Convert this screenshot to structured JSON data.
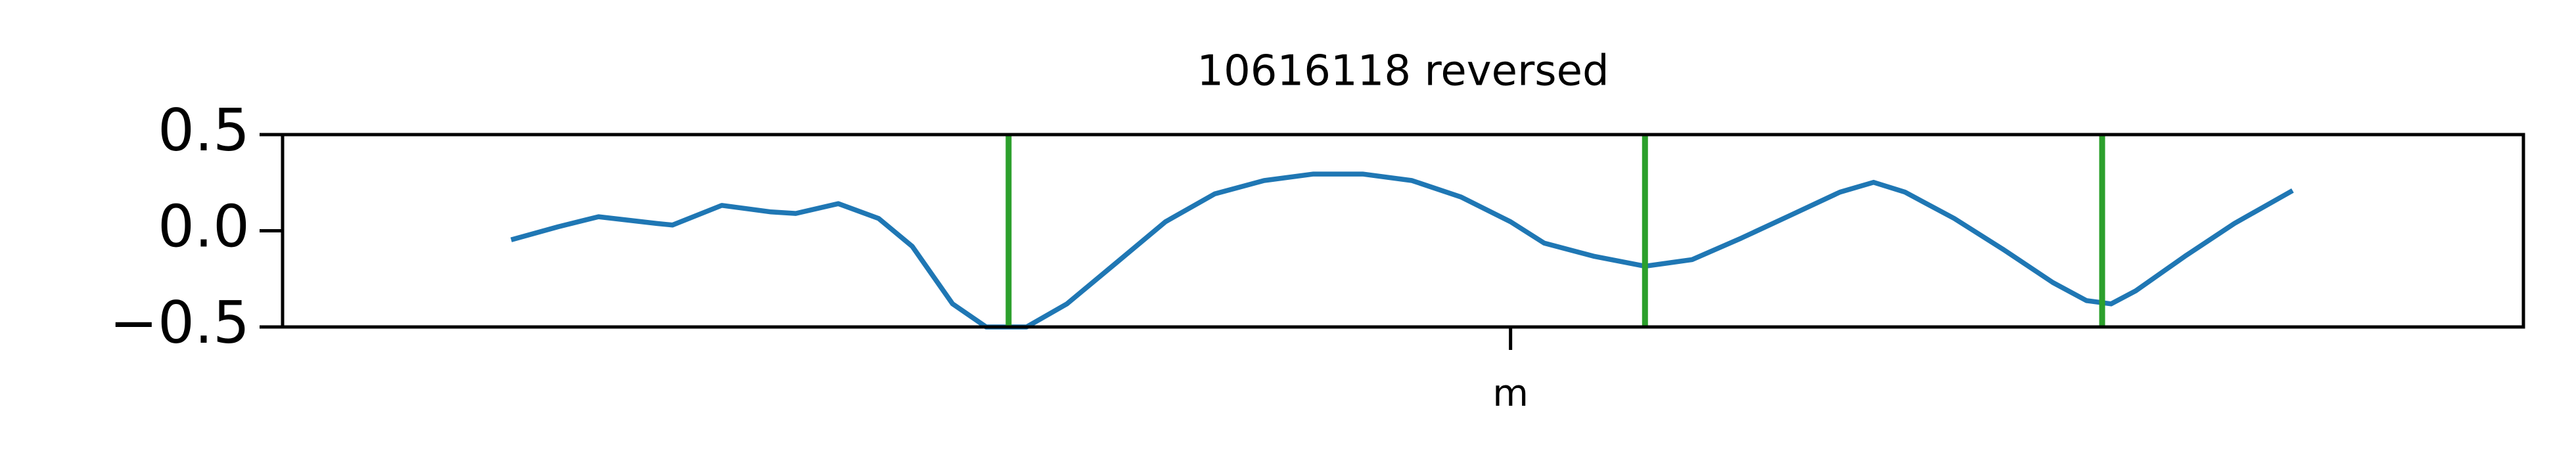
{
  "chart_data": {
    "type": "line",
    "title": "10616118 reversed",
    "x": [
      10.2,
      12.3,
      14.1,
      16.7,
      17.4,
      19.6,
      21.8,
      22.9,
      24.8,
      26.6,
      28.1,
      29.9,
      31.4,
      33.2,
      35.0,
      37.2,
      39.4,
      41.6,
      43.8,
      46.0,
      48.2,
      50.4,
      52.6,
      54.8,
      56.3,
      58.5,
      60.8,
      62.9,
      65.1,
      67.3,
      69.5,
      71.0,
      72.4,
      74.6,
      76.8,
      79.0,
      80.5,
      81.6,
      82.7,
      84.9,
      87.1,
      89.7
    ],
    "series": [
      {
        "color": "#1f77b4",
        "values": [
          -0.047,
          0.021,
          0.073,
          0.038,
          0.03,
          0.132,
          0.098,
          0.09,
          0.141,
          0.064,
          -0.081,
          -0.38,
          -0.5,
          -0.5,
          -0.38,
          -0.167,
          0.047,
          0.192,
          0.261,
          0.295,
          0.295,
          0.261,
          0.175,
          0.047,
          -0.064,
          -0.132,
          -0.184,
          -0.15,
          -0.038,
          0.081,
          0.201,
          0.252,
          0.201,
          0.064,
          -0.098,
          -0.269,
          -0.363,
          -0.38,
          -0.312,
          -0.132,
          0.038,
          0.209
        ]
      }
    ],
    "vlines": {
      "color": "#2ca02c",
      "x": [
        32.4,
        60.8,
        81.2
      ]
    },
    "xlim": [
      0,
      100
    ],
    "xticks": [
      {
        "value": 54.8,
        "label": "m"
      }
    ],
    "ylim": [
      -0.5,
      0.5
    ],
    "yticks": [
      {
        "value": -0.5,
        "label": "−0.5"
      },
      {
        "value": 0,
        "label": "0.0"
      },
      0.5
    ],
    "grid": false
  }
}
